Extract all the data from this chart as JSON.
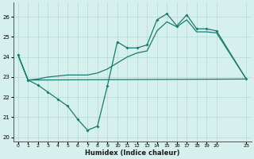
{
  "xlabel": "Humidex (Indice chaleur)",
  "bg_color": "#d6f0ee",
  "line_color": "#1a7a6e",
  "grid_color": "#b8ddd9",
  "xlim": [
    -0.5,
    23.5
  ],
  "ylim": [
    19.8,
    26.7
  ],
  "yticks": [
    20,
    21,
    22,
    23,
    24,
    25,
    26
  ],
  "xticks": [
    0,
    1,
    2,
    3,
    4,
    5,
    6,
    7,
    8,
    9,
    10,
    11,
    12,
    13,
    14,
    15,
    16,
    17,
    18,
    19,
    20,
    23
  ],
  "xticklabels": [
    "0",
    "1",
    "2",
    "3",
    "4",
    "5",
    "6",
    "7",
    "8",
    "9",
    "10",
    "11",
    "12",
    "13",
    "14",
    "15",
    "16",
    "17",
    "18",
    "19",
    "20",
    "23"
  ],
  "line1_x": [
    0,
    1,
    2,
    3,
    4,
    5,
    6,
    7,
    8,
    9,
    10,
    11,
    12,
    13,
    14,
    15,
    16,
    17,
    18,
    19,
    20,
    23
  ],
  "line1_y": [
    24.1,
    22.85,
    22.6,
    22.25,
    21.9,
    21.55,
    20.9,
    20.35,
    20.55,
    22.55,
    24.75,
    24.45,
    24.45,
    24.6,
    25.85,
    26.15,
    25.55,
    26.1,
    25.4,
    25.4,
    25.3,
    22.9
  ],
  "line2_x": [
    0,
    1,
    23
  ],
  "line2_y": [
    24.1,
    22.85,
    22.9
  ],
  "line3_x": [
    0,
    1,
    2,
    3,
    4,
    5,
    6,
    7,
    8,
    9,
    10,
    11,
    12,
    13,
    14,
    15,
    16,
    17,
    18,
    19,
    20,
    23
  ],
  "line3_y": [
    24.1,
    22.85,
    22.9,
    23.0,
    23.05,
    23.1,
    23.1,
    23.1,
    23.2,
    23.4,
    23.7,
    24.0,
    24.2,
    24.3,
    25.3,
    25.75,
    25.5,
    25.85,
    25.25,
    25.25,
    25.2,
    22.9
  ]
}
